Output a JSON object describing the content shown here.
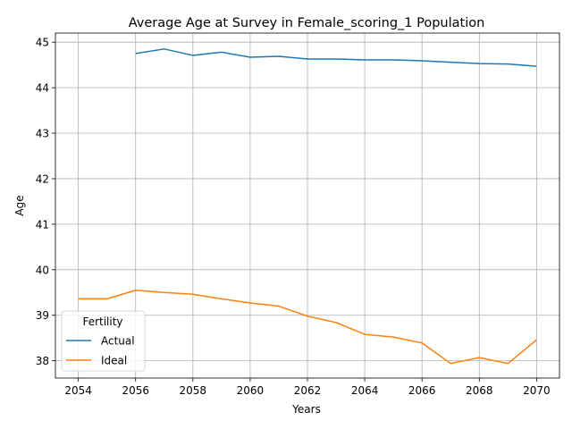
{
  "chart_data": {
    "type": "line",
    "title": "Average Age at Survey in Female_scoring_1 Population",
    "xlabel": "Years",
    "ylabel": "Age",
    "xlim": [
      2053.2,
      2070.8
    ],
    "ylim": [
      37.62,
      45.2
    ],
    "xticks": [
      2054,
      2056,
      2058,
      2060,
      2062,
      2064,
      2066,
      2068,
      2070
    ],
    "yticks": [
      38,
      39,
      40,
      41,
      42,
      43,
      44,
      45
    ],
    "grid": true,
    "legend": {
      "title": "Fertility",
      "placement": "lower-left"
    },
    "series": [
      {
        "name": "Actual",
        "color": "#1f77b4",
        "x": [
          2056,
          2057,
          2058,
          2059,
          2060,
          2061,
          2062,
          2063,
          2064,
          2065,
          2066,
          2067,
          2068,
          2069,
          2070
        ],
        "y": [
          44.75,
          44.85,
          44.71,
          44.78,
          44.67,
          44.69,
          44.63,
          44.63,
          44.61,
          44.61,
          44.59,
          44.56,
          44.53,
          44.52,
          44.47
        ]
      },
      {
        "name": "Ideal",
        "color": "#ff7f0e",
        "x": [
          2054,
          2055,
          2056,
          2057,
          2058,
          2059,
          2060,
          2061,
          2062,
          2063,
          2064,
          2065,
          2066,
          2067,
          2068,
          2069,
          2070
        ],
        "y": [
          39.36,
          39.36,
          39.55,
          39.5,
          39.46,
          39.36,
          39.27,
          39.2,
          38.98,
          38.84,
          38.58,
          38.52,
          38.39,
          37.94,
          38.07,
          37.94,
          38.46
        ]
      }
    ]
  }
}
